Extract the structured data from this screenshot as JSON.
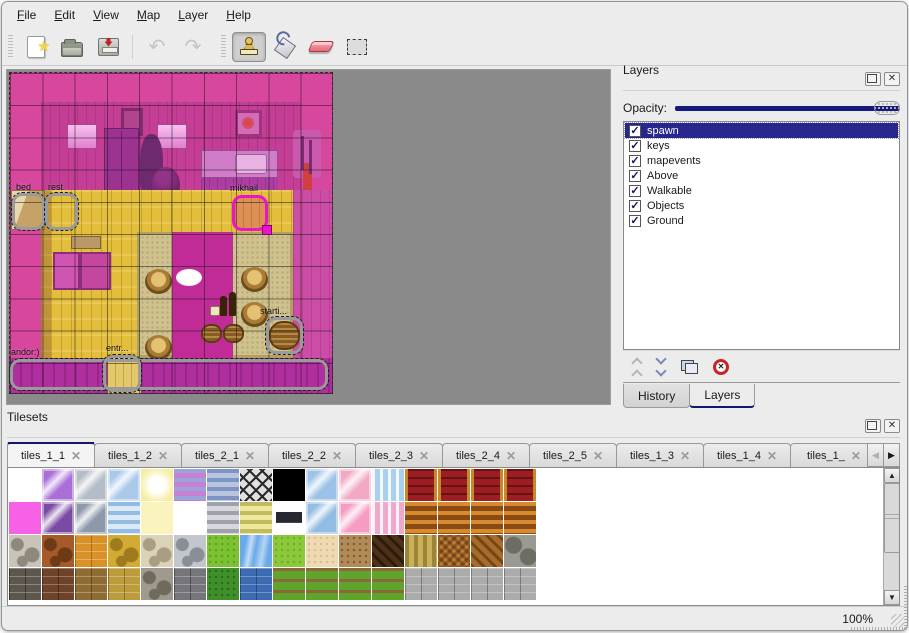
{
  "menu": {
    "items": [
      "File",
      "Edit",
      "View",
      "Map",
      "Layer",
      "Help"
    ]
  },
  "toolbar": {
    "buttons": [
      {
        "icon": "new-file-icon",
        "enabled": true,
        "active": false
      },
      {
        "icon": "open-file-icon",
        "enabled": true,
        "active": false
      },
      {
        "icon": "save-file-icon",
        "enabled": true,
        "active": false
      },
      {
        "icon": "undo-icon",
        "enabled": false,
        "active": false
      },
      {
        "icon": "redo-icon",
        "enabled": false,
        "active": false
      },
      {
        "icon": "stamp-brush-icon",
        "enabled": true,
        "active": true
      },
      {
        "icon": "bucket-fill-icon",
        "enabled": true,
        "active": false
      },
      {
        "icon": "eraser-icon",
        "enabled": true,
        "active": false
      },
      {
        "icon": "rectangular-select-icon",
        "enabled": true,
        "active": false
      }
    ]
  },
  "map_view": {
    "objects": [
      {
        "id": "bed",
        "label": "bed",
        "selected": false
      },
      {
        "id": "rest",
        "label": "rest",
        "selected": false
      },
      {
        "id": "mikhail",
        "label": "mikhail",
        "selected": true
      },
      {
        "id": "andor",
        "label": "andor:)",
        "selected": false
      },
      {
        "id": "entr",
        "label": "entr...",
        "selected": false
      },
      {
        "id": "start",
        "label": "starti...",
        "selected": false
      }
    ]
  },
  "layers_dock": {
    "title": "Layers",
    "opacity_label": "Opacity:",
    "opacity_percent": 100,
    "layers": [
      {
        "name": "spawn",
        "checked": true,
        "selected": true
      },
      {
        "name": "keys",
        "checked": true,
        "selected": false
      },
      {
        "name": "mapevents",
        "checked": true,
        "selected": false
      },
      {
        "name": "Above",
        "checked": true,
        "selected": false
      },
      {
        "name": "Walkable",
        "checked": true,
        "selected": false
      },
      {
        "name": "Objects",
        "checked": true,
        "selected": false
      },
      {
        "name": "Ground",
        "checked": true,
        "selected": false
      }
    ],
    "buttons": [
      "move-layer-up",
      "move-layer-down",
      "duplicate-layer",
      "delete-layer"
    ],
    "tabs": [
      {
        "label": "History",
        "active": false
      },
      {
        "label": "Layers",
        "active": true
      }
    ]
  },
  "tilesets_dock": {
    "title": "Tilesets",
    "tabs": [
      {
        "label": "tiles_1_1",
        "active": true
      },
      {
        "label": "tiles_1_2",
        "active": false
      },
      {
        "label": "tiles_2_1",
        "active": false
      },
      {
        "label": "tiles_2_2",
        "active": false
      },
      {
        "label": "tiles_2_3",
        "active": false
      },
      {
        "label": "tiles_2_4",
        "active": false
      },
      {
        "label": "tiles_2_5",
        "active": false
      },
      {
        "label": "tiles_1_3",
        "active": false
      },
      {
        "label": "tiles_1_4",
        "active": false
      },
      {
        "label": "tiles_1_",
        "active": false
      }
    ]
  },
  "statusbar": {
    "zoom_level": "100%"
  },
  "colors": {
    "selection_navy": "#26268c",
    "slider_fill": "#141b7c",
    "active_tab_line": "#16166b",
    "map_wall_pink": "#d8479e",
    "floor_yellow": "#e3bd3c",
    "selected_object": "#ea14ca"
  },
  "tileset_grid": {
    "tile_size": 32,
    "rows": [
      [
        {
          "c1": "#ffffff",
          "p": "solid"
        },
        {
          "c1": "#a86fd8",
          "p": "glass"
        },
        {
          "c1": "#b4bcc8",
          "p": "glass"
        },
        {
          "c1": "#a9c9ea",
          "p": "glass"
        },
        {
          "c1": "#f6ee9e",
          "p": "glow"
        },
        {
          "c1": "#c87fd4",
          "c2": "#9aa4d8",
          "p": "hstripe"
        },
        {
          "c1": "#b9c4dd",
          "c2": "#7e93c6",
          "p": "hstripe"
        },
        {
          "c1": "#e0e0e0",
          "c2": "#2a2a2a",
          "p": "lattice"
        },
        {
          "c1": "#000000",
          "p": "solid"
        },
        {
          "c1": "#9cc2e8",
          "p": "glass"
        },
        {
          "c1": "#f2a9c6",
          "p": "glass"
        },
        {
          "c1": "#a9d0ef",
          "p": "curtain"
        },
        {
          "c1": "#9c1d22",
          "c2": "#c8882a",
          "p": "carpet"
        },
        {
          "c1": "#9c1d22",
          "c2": "#c8882a",
          "p": "carpet"
        },
        {
          "c1": "#9c1d22",
          "c2": "#c8882a",
          "p": "carpet"
        },
        {
          "c1": "#9c1d22",
          "c2": "#c8882a",
          "p": "carpet"
        }
      ],
      [
        {
          "c1": "#f661e6",
          "p": "solid"
        },
        {
          "c1": "#7a4aa4",
          "p": "glass"
        },
        {
          "c1": "#8d98a8",
          "p": "glass"
        },
        {
          "c1": "#dceaf8",
          "c2": "#93bce4",
          "p": "hstripe"
        },
        {
          "c1": "#faf3bd",
          "p": "solid"
        },
        {
          "c1": "#ffffff",
          "p": "solid"
        },
        {
          "c1": "#d8d8dc",
          "c2": "#9fa2ac",
          "p": "hstripe"
        },
        {
          "c1": "#eee89a",
          "c2": "#c2ba62",
          "p": "hstripe"
        },
        {
          "c1": "#ffffff",
          "c2": "#262a30",
          "p": "plaque"
        },
        {
          "c1": "#92bce2",
          "p": "glass"
        },
        {
          "c1": "#f49cc2",
          "p": "glass"
        },
        {
          "c1": "#f2a8ca",
          "p": "curtain"
        },
        {
          "c1": "#8a4a14",
          "c2": "#d88b2e",
          "p": "hstripe"
        },
        {
          "c1": "#8a4a14",
          "c2": "#d88b2e",
          "p": "hstripe"
        },
        {
          "c1": "#8a4a14",
          "c2": "#d88b2e",
          "p": "hstripe"
        },
        {
          "c1": "#8a4a14",
          "c2": "#d88b2e",
          "p": "hstripe"
        }
      ],
      [
        {
          "c1": "#c9c4ba",
          "c2": "#8f897c",
          "p": "stone"
        },
        {
          "c1": "#a65a2a",
          "c2": "#6e3a16",
          "p": "stone"
        },
        {
          "c1": "#d89228",
          "c2": "#a86a14",
          "p": "brick"
        },
        {
          "c1": "#d2aa34",
          "c2": "#9e7c1e",
          "p": "stone"
        },
        {
          "c1": "#dbd2ba",
          "c2": "#a99e82",
          "p": "stone"
        },
        {
          "c1": "#c3c7cb",
          "c2": "#898f96",
          "p": "stone"
        },
        {
          "c1": "#7cc132",
          "c2": "#5ea21e",
          "p": "speckle"
        },
        {
          "c1": "#6aaae8",
          "p": "water"
        },
        {
          "c1": "#8cc93a",
          "c2": "#6fae24",
          "p": "speckle"
        },
        {
          "c1": "#edd9b2",
          "c2": "#d8bf92",
          "p": "speckle"
        },
        {
          "c1": "#b28a58",
          "c2": "#7e5c32",
          "p": "speckle"
        },
        {
          "c1": "#4c3118",
          "c2": "#2c1a0a",
          "p": "diag"
        },
        {
          "c1": "#cbb25a",
          "c2": "#9c8538",
          "p": "vstripe"
        },
        {
          "c1": "#c67c32",
          "p": "weave"
        },
        {
          "c1": "#a86c2a",
          "c2": "#744716",
          "p": "diag"
        },
        {
          "c1": "#9b9a92",
          "c2": "#6e6d64",
          "p": "logs"
        }
      ],
      [
        {
          "c1": "#5d564c",
          "c2": "#3a342c",
          "p": "brick"
        },
        {
          "c1": "#6e432a",
          "c2": "#4a2a18",
          "p": "brick"
        },
        {
          "c1": "#8f6c34",
          "c2": "#63481e",
          "p": "brick"
        },
        {
          "c1": "#bd9c3e",
          "c2": "#8a7026",
          "p": "brick"
        },
        {
          "c1": "#a09a8e",
          "c2": "#6f695e",
          "p": "stone"
        },
        {
          "c1": "#75757a",
          "c2": "#4c4c52",
          "p": "brick"
        },
        {
          "c1": "#3f8f2a",
          "c2": "#2a6b18",
          "p": "speckle"
        },
        {
          "c1": "#3e6cb2",
          "c2": "#27497e",
          "p": "brick"
        },
        {
          "c1": "#5fa52c",
          "c2": "#8a6838",
          "p": "grassrow"
        },
        {
          "c1": "#5fa52c",
          "c2": "#8a6838",
          "p": "grassrow"
        },
        {
          "c1": "#5fa52c",
          "c2": "#8a6838",
          "p": "grassrow"
        },
        {
          "c1": "#5fa52c",
          "c2": "#8a6838",
          "p": "grassrow"
        },
        {
          "c1": "#ababab",
          "c2": "#787878",
          "p": "brick"
        },
        {
          "c1": "#ababab",
          "c2": "#787878",
          "p": "brick"
        },
        {
          "c1": "#ababab",
          "c2": "#787878",
          "p": "brick"
        },
        {
          "c1": "#ababab",
          "c2": "#787878",
          "p": "brick"
        }
      ]
    ]
  }
}
